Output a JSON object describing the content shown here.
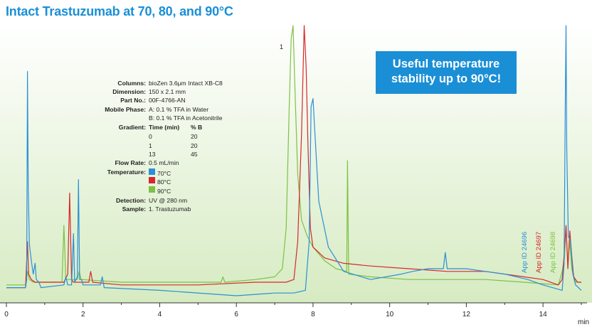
{
  "title": "Intact Trastuzumab at 70, 80, and 90°C",
  "callout": {
    "line1": "Useful temperature",
    "line2": "stability up to 90°C!"
  },
  "conditions": {
    "columns_label": "Columns:",
    "columns_value": "bioZen 3.6µm Intact XB-C8",
    "dimension_label": "Dimension:",
    "dimension_value": "150 x 2.1 mm",
    "partno_label": "Part No.:",
    "partno_value": "00F-4766-AN",
    "mobile_label": "Mobile Phase:",
    "mobile_a": "A: 0.1 % TFA in Water",
    "mobile_b": "B: 0.1 % TFA in Acetonitrile",
    "gradient_label": "Gradient:",
    "gradient_col1": "Time (min)",
    "gradient_col2": "% B",
    "gradient_rows": [
      [
        "0",
        "20"
      ],
      [
        "1",
        "20"
      ],
      [
        "13",
        "45"
      ]
    ],
    "flow_label": "Flow Rate:",
    "flow_value": "0.5 mL/min",
    "temp_label": "Temperature:",
    "temps": [
      {
        "label": "70°C",
        "color": "#2b8fd6"
      },
      {
        "label": "80°C",
        "color": "#d9262e"
      },
      {
        "label": "90°C",
        "color": "#7dc242"
      }
    ],
    "detection_label": "Detection:",
    "detection_value": "UV @ 280 nm",
    "sample_label": "Sample:",
    "sample_value": "1. Trastuzumab"
  },
  "app_ids": [
    {
      "label": "App ID 24696",
      "color": "#2b8fd6"
    },
    {
      "label": "App ID 24697",
      "color": "#d9262e"
    },
    {
      "label": "App ID 24698",
      "color": "#7dc242"
    }
  ],
  "chart_data": {
    "type": "line",
    "title": "Intact Trastuzumab at 70, 80, and 90°C",
    "xlabel": "min",
    "ylabel": "",
    "xlim": [
      0,
      15
    ],
    "x_ticks": [
      0,
      2,
      4,
      6,
      8,
      10,
      12,
      14
    ],
    "peak_label": "1",
    "grid": false,
    "background_gradient": [
      "#ffffff",
      "#d6ebc2"
    ],
    "series": [
      {
        "name": "70°C",
        "color": "#2b8fd6",
        "points": [
          [
            0.0,
            0.03
          ],
          [
            0.5,
            0.03
          ],
          [
            0.53,
            0.06
          ],
          [
            0.55,
            0.83
          ],
          [
            0.57,
            0.4
          ],
          [
            0.6,
            0.19
          ],
          [
            0.65,
            0.13
          ],
          [
            0.7,
            0.08
          ],
          [
            0.75,
            0.12
          ],
          [
            0.78,
            0.06
          ],
          [
            0.85,
            0.05
          ],
          [
            0.9,
            0.03
          ],
          [
            1.5,
            0.04
          ],
          [
            1.55,
            0.07
          ],
          [
            1.6,
            0.04
          ],
          [
            1.7,
            0.04
          ],
          [
            1.75,
            0.23
          ],
          [
            1.78,
            0.05
          ],
          [
            1.85,
            0.07
          ],
          [
            1.88,
            0.43
          ],
          [
            1.91,
            0.06
          ],
          [
            1.96,
            0.06
          ],
          [
            2.0,
            0.04
          ],
          [
            2.45,
            0.04
          ],
          [
            2.5,
            0.07
          ],
          [
            2.55,
            0.03
          ],
          [
            4.0,
            0.02
          ],
          [
            6.0,
            0.0
          ],
          [
            7.0,
            0.01
          ],
          [
            7.5,
            0.01
          ],
          [
            7.8,
            0.02
          ],
          [
            7.9,
            0.2
          ],
          [
            7.95,
            0.7
          ],
          [
            8.0,
            0.73
          ],
          [
            8.05,
            0.6
          ],
          [
            8.15,
            0.35
          ],
          [
            8.4,
            0.18
          ],
          [
            8.8,
            0.09
          ],
          [
            9.5,
            0.06
          ],
          [
            10.3,
            0.08
          ],
          [
            10.6,
            0.09
          ],
          [
            11.0,
            0.1
          ],
          [
            11.4,
            0.1
          ],
          [
            11.45,
            0.16
          ],
          [
            11.5,
            0.1
          ],
          [
            12.0,
            0.1
          ],
          [
            12.5,
            0.09
          ],
          [
            13.0,
            0.08
          ],
          [
            13.6,
            0.06
          ],
          [
            14.0,
            0.04
          ],
          [
            14.5,
            0.02
          ],
          [
            14.55,
            0.12
          ],
          [
            14.58,
            0.7
          ],
          [
            14.6,
            1.0
          ],
          [
            14.62,
            0.55
          ],
          [
            14.66,
            0.22
          ],
          [
            14.72,
            0.2
          ],
          [
            14.78,
            0.08
          ],
          [
            14.85,
            0.04
          ],
          [
            15.0,
            0.02
          ]
        ]
      },
      {
        "name": "80°C",
        "color": "#d9262e",
        "points": [
          [
            0.0,
            0.03
          ],
          [
            0.5,
            0.03
          ],
          [
            0.55,
            0.2
          ],
          [
            0.58,
            0.08
          ],
          [
            0.65,
            0.06
          ],
          [
            0.75,
            0.05
          ],
          [
            1.0,
            0.05
          ],
          [
            1.5,
            0.05
          ],
          [
            1.6,
            0.08
          ],
          [
            1.65,
            0.38
          ],
          [
            1.7,
            0.06
          ],
          [
            1.75,
            0.05
          ],
          [
            2.15,
            0.05
          ],
          [
            2.2,
            0.09
          ],
          [
            2.25,
            0.05
          ],
          [
            3.0,
            0.04
          ],
          [
            5.0,
            0.04
          ],
          [
            6.5,
            0.05
          ],
          [
            7.0,
            0.05
          ],
          [
            7.3,
            0.05
          ],
          [
            7.5,
            0.06
          ],
          [
            7.6,
            0.2
          ],
          [
            7.7,
            0.6
          ],
          [
            7.77,
            1.0
          ],
          [
            7.82,
            0.85
          ],
          [
            7.87,
            0.55
          ],
          [
            7.93,
            0.25
          ],
          [
            8.0,
            0.18
          ],
          [
            8.3,
            0.14
          ],
          [
            8.8,
            0.12
          ],
          [
            9.5,
            0.11
          ],
          [
            10.5,
            0.1
          ],
          [
            11.5,
            0.09
          ],
          [
            12.5,
            0.09
          ],
          [
            13.5,
            0.07
          ],
          [
            14.0,
            0.06
          ],
          [
            14.4,
            0.04
          ],
          [
            14.5,
            0.06
          ],
          [
            14.55,
            0.15
          ],
          [
            14.6,
            0.26
          ],
          [
            14.65,
            0.1
          ],
          [
            14.7,
            0.24
          ],
          [
            14.75,
            0.15
          ],
          [
            14.8,
            0.07
          ],
          [
            14.9,
            0.05
          ],
          [
            15.0,
            0.05
          ]
        ]
      },
      {
        "name": "90°C",
        "color": "#7dc242",
        "points": [
          [
            0.0,
            0.04
          ],
          [
            0.5,
            0.04
          ],
          [
            0.55,
            0.09
          ],
          [
            0.6,
            0.06
          ],
          [
            0.7,
            0.05
          ],
          [
            1.0,
            0.05
          ],
          [
            1.45,
            0.05
          ],
          [
            1.5,
            0.26
          ],
          [
            1.55,
            0.06
          ],
          [
            1.85,
            0.06
          ],
          [
            1.9,
            0.09
          ],
          [
            1.95,
            0.06
          ],
          [
            3.0,
            0.05
          ],
          [
            5.0,
            0.05
          ],
          [
            5.6,
            0.05
          ],
          [
            5.65,
            0.07
          ],
          [
            5.7,
            0.05
          ],
          [
            6.5,
            0.06
          ],
          [
            7.0,
            0.07
          ],
          [
            7.2,
            0.1
          ],
          [
            7.3,
            0.25
          ],
          [
            7.38,
            0.7
          ],
          [
            7.43,
            0.95
          ],
          [
            7.48,
            1.0
          ],
          [
            7.52,
            0.8
          ],
          [
            7.6,
            0.45
          ],
          [
            7.7,
            0.28
          ],
          [
            7.85,
            0.22
          ],
          [
            8.0,
            0.18
          ],
          [
            8.3,
            0.13
          ],
          [
            8.6,
            0.1
          ],
          [
            8.88,
            0.09
          ],
          [
            8.9,
            0.5
          ],
          [
            8.93,
            0.08
          ],
          [
            9.5,
            0.07
          ],
          [
            10.5,
            0.06
          ],
          [
            11.5,
            0.06
          ],
          [
            12.5,
            0.06
          ],
          [
            13.5,
            0.05
          ],
          [
            14.4,
            0.04
          ],
          [
            14.5,
            0.09
          ],
          [
            14.56,
            0.14
          ],
          [
            14.6,
            0.25
          ],
          [
            14.65,
            0.12
          ],
          [
            14.7,
            0.2
          ],
          [
            14.75,
            0.1
          ],
          [
            14.85,
            0.05
          ],
          [
            15.0,
            0.05
          ]
        ]
      }
    ]
  }
}
